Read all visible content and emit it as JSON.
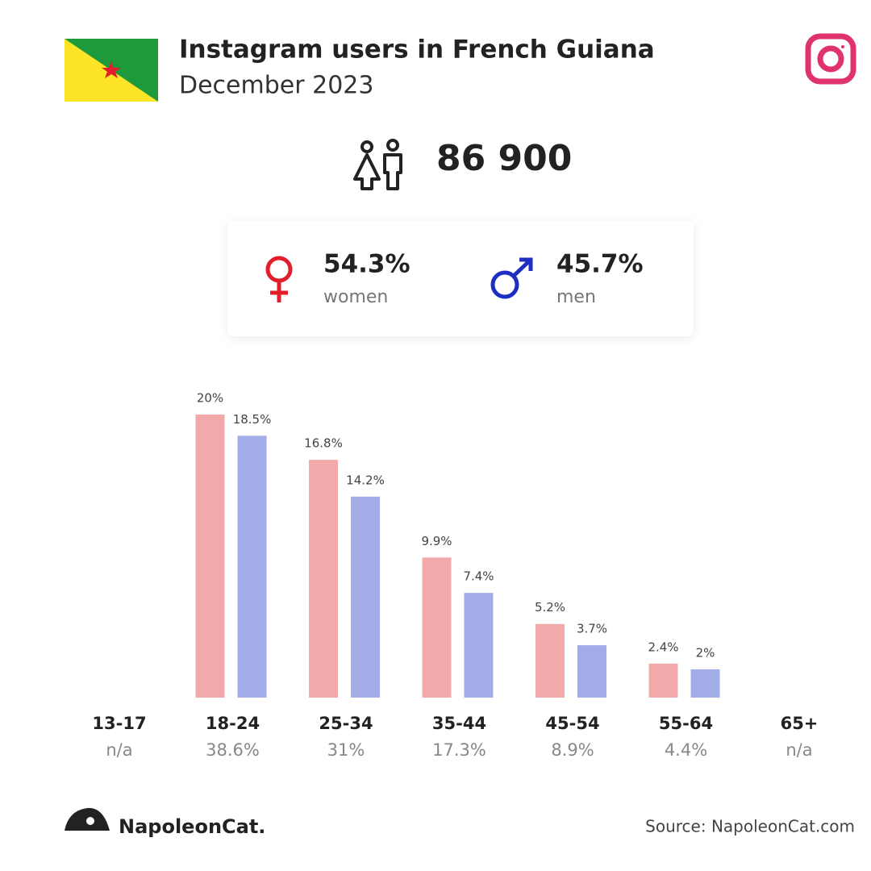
{
  "header": {
    "title": "Instagram users in French Guiana",
    "subtitle": "December 2023"
  },
  "total": "86 900",
  "gender": {
    "women": {
      "share": "54.3%",
      "label": "women"
    },
    "men": {
      "share": "45.7%",
      "label": "men"
    }
  },
  "chart_data": {
    "type": "bar",
    "categories": [
      "13-17",
      "18-24",
      "25-34",
      "35-44",
      "45-54",
      "55-64",
      "65+"
    ],
    "category_totals": [
      "n/a",
      "38.6%",
      "31%",
      "17.3%",
      "8.9%",
      "4.4%",
      "n/a"
    ],
    "series": [
      {
        "color": "#f2a9aa",
        "values": [
          null,
          20,
          16.8,
          9.9,
          5.2,
          2.4,
          null
        ],
        "value_labels": [
          null,
          "20%",
          "16.8%",
          "9.9%",
          "5.2%",
          "2.4%",
          null
        ]
      },
      {
        "color": "#a2ade8",
        "values": [
          null,
          18.5,
          14.2,
          7.4,
          3.7,
          2,
          null
        ],
        "value_labels": [
          null,
          "18.5%",
          "14.2%",
          "7.4%",
          "3.7%",
          "2%",
          null
        ]
      }
    ],
    "ylim": [
      0,
      20
    ]
  },
  "footer": {
    "brand": "NapoleonCat.",
    "source": "Source: NapoleonCat.com"
  }
}
